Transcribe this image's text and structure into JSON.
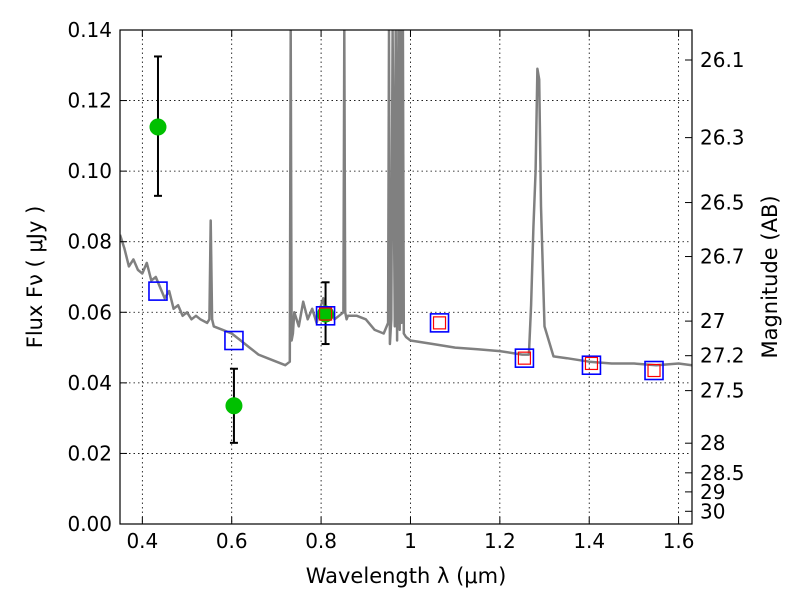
{
  "chart_data": {
    "type": "scatter",
    "xlabel": "Wavelength  λ (μm)",
    "ylabel": "Flux  Fν  ( μJy )",
    "ylabel_right": "Magnitude (AB)",
    "xlim": [
      0.35,
      1.63
    ],
    "ylim": [
      0,
      0.14
    ],
    "grid": true,
    "x_ticks": [
      0.4,
      0.6,
      0.8,
      1.0,
      1.2,
      1.4,
      1.6
    ],
    "x_tick_labels": [
      "0.4",
      "0.6",
      "0.8",
      "1",
      "1.2",
      "1.4",
      "1.6"
    ],
    "y_ticks": [
      0,
      0.02,
      0.04,
      0.06,
      0.08,
      0.1,
      0.12,
      0.14
    ],
    "y_tick_labels": [
      "0.00",
      "0.02",
      "0.04",
      "0.06",
      "0.08",
      "0.10",
      "0.12",
      "0.14"
    ],
    "right_ticks": [
      {
        "flux": 0.1315,
        "label": "26.1"
      },
      {
        "flux": 0.1095,
        "label": "26.3"
      },
      {
        "flux": 0.0911,
        "label": "26.5"
      },
      {
        "flux": 0.0758,
        "label": "26.7"
      },
      {
        "flux": 0.0575,
        "label": "27"
      },
      {
        "flux": 0.0477,
        "label": "27.2"
      },
      {
        "flux": 0.0378,
        "label": "27.5"
      },
      {
        "flux": 0.0229,
        "label": "28"
      },
      {
        "flux": 0.0145,
        "label": "28.5"
      },
      {
        "flux": 0.0091,
        "label": "29"
      },
      {
        "flux": 0.0036,
        "label": "30"
      }
    ],
    "series": [
      {
        "kind": "line",
        "color": "#808080",
        "x": [
          0.35,
          0.36,
          0.37,
          0.38,
          0.39,
          0.4,
          0.41,
          0.42,
          0.43,
          0.44,
          0.45,
          0.46,
          0.47,
          0.48,
          0.49,
          0.5,
          0.51,
          0.52,
          0.53,
          0.545,
          0.55,
          0.553,
          0.556,
          0.56,
          0.58,
          0.6,
          0.62,
          0.64,
          0.66,
          0.68,
          0.7,
          0.72,
          0.73,
          0.732,
          0.734,
          0.737,
          0.74,
          0.75,
          0.76,
          0.77,
          0.78,
          0.79,
          0.8,
          0.805,
          0.81,
          0.82,
          0.83,
          0.84,
          0.85,
          0.852,
          0.854,
          0.857,
          0.86,
          0.88,
          0.9,
          0.92,
          0.94,
          0.95,
          0.952,
          0.954,
          0.957,
          0.96,
          0.965,
          0.967,
          0.97,
          0.973,
          0.976,
          0.978,
          0.98,
          0.983,
          0.985,
          0.99,
          1.0,
          1.05,
          1.1,
          1.15,
          1.2,
          1.25,
          1.265,
          1.27,
          1.275,
          1.28,
          1.284,
          1.288,
          1.292,
          1.3,
          1.32,
          1.35,
          1.4,
          1.45,
          1.5,
          1.55,
          1.6,
          1.63
        ],
        "y": [
          0.082,
          0.078,
          0.073,
          0.075,
          0.072,
          0.071,
          0.074,
          0.069,
          0.07,
          0.067,
          0.064,
          0.066,
          0.061,
          0.062,
          0.059,
          0.06,
          0.058,
          0.059,
          0.058,
          0.057,
          0.058,
          0.086,
          0.058,
          0.056,
          0.055,
          0.054,
          0.052,
          0.05,
          0.048,
          0.047,
          0.046,
          0.045,
          0.046,
          0.14,
          0.052,
          0.054,
          0.06,
          0.056,
          0.063,
          0.058,
          0.061,
          0.057,
          0.062,
          0.064,
          0.06,
          0.061,
          0.058,
          0.059,
          0.06,
          0.14,
          0.06,
          0.058,
          0.059,
          0.059,
          0.058,
          0.055,
          0.054,
          0.057,
          0.14,
          0.051,
          0.058,
          0.14,
          0.056,
          0.14,
          0.052,
          0.14,
          0.055,
          0.14,
          0.057,
          0.14,
          0.054,
          0.053,
          0.052,
          0.051,
          0.05,
          0.0495,
          0.049,
          0.048,
          0.048,
          0.062,
          0.084,
          0.1,
          0.129,
          0.126,
          0.09,
          0.056,
          0.0475,
          0.047,
          0.046,
          0.0455,
          0.0455,
          0.045,
          0.0455,
          0.045
        ]
      },
      {
        "kind": "points",
        "color": "#00c000",
        "x": [
          0.435,
          0.605,
          0.81
        ],
        "y": [
          0.1125,
          0.0335,
          0.0595
        ],
        "yerr_low": [
          0.093,
          0.023,
          0.051
        ],
        "yerr_high": [
          0.1325,
          0.044,
          0.0685
        ]
      },
      {
        "kind": "open-squares-large",
        "color": "#0000ff",
        "x": [
          0.435,
          0.605,
          0.81,
          1.065,
          1.255,
          1.405,
          1.545
        ],
        "y": [
          0.066,
          0.052,
          0.059,
          0.057,
          0.047,
          0.045,
          0.0435
        ]
      },
      {
        "kind": "open-squares-small",
        "color": "#ff0000",
        "x": [
          0.81,
          1.065,
          1.255,
          1.405,
          1.545
        ],
        "y": [
          0.0595,
          0.057,
          0.047,
          0.0455,
          0.0435
        ]
      }
    ]
  }
}
